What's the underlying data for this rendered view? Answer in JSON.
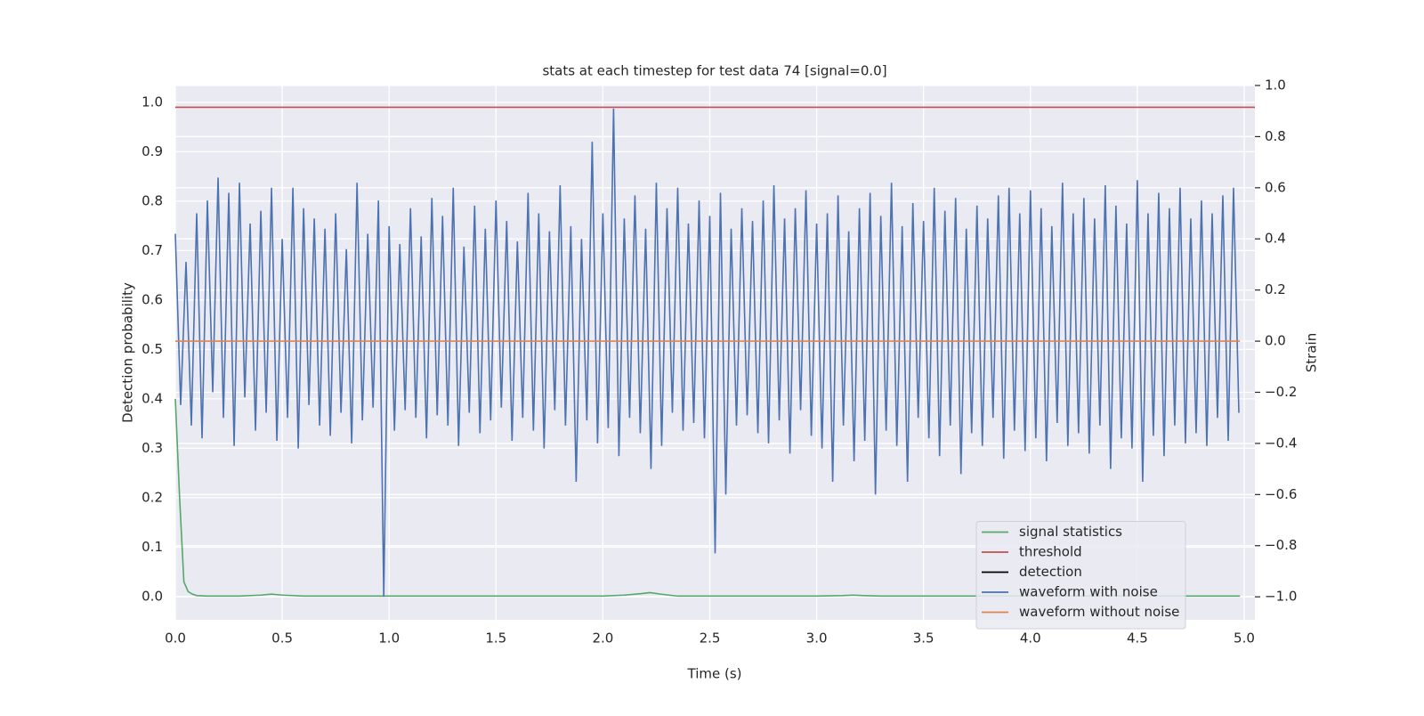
{
  "chart_data": {
    "type": "line",
    "title": "stats at each timestep for test data 74 [signal=0.0]",
    "xlabel": "Time (s)",
    "ylabel": "Detection probability",
    "y2label": "Strain",
    "xlim": [
      0,
      5.05
    ],
    "ylim": [
      -0.047,
      1.034
    ],
    "y2lim": [
      -1.09,
      1.0
    ],
    "xticks": [
      {
        "value": 0,
        "label": "0.0"
      },
      {
        "value": 0.5,
        "label": "0.5"
      },
      {
        "value": 1,
        "label": "1.0"
      },
      {
        "value": 1.5,
        "label": "1.5"
      },
      {
        "value": 2,
        "label": "2.0"
      },
      {
        "value": 2.5,
        "label": "2.5"
      },
      {
        "value": 3,
        "label": "3.0"
      },
      {
        "value": 3.5,
        "label": "3.5"
      },
      {
        "value": 4,
        "label": "4.0"
      },
      {
        "value": 4.5,
        "label": "4.5"
      },
      {
        "value": 5,
        "label": "5.0"
      }
    ],
    "yticks": [
      {
        "value": 0,
        "label": "0.0"
      },
      {
        "value": 0.1,
        "label": "0.1"
      },
      {
        "value": 0.2,
        "label": "0.2"
      },
      {
        "value": 0.3,
        "label": "0.3"
      },
      {
        "value": 0.4,
        "label": "0.4"
      },
      {
        "value": 0.5,
        "label": "0.5"
      },
      {
        "value": 0.6,
        "label": "0.6"
      },
      {
        "value": 0.7,
        "label": "0.7"
      },
      {
        "value": 0.8,
        "label": "0.8"
      },
      {
        "value": 0.9,
        "label": "0.9"
      },
      {
        "value": 1,
        "label": "1.0"
      }
    ],
    "y2ticks": [
      {
        "value": -1,
        "label": "−1.0"
      },
      {
        "value": -0.8,
        "label": "−0.8"
      },
      {
        "value": -0.6,
        "label": "−0.6"
      },
      {
        "value": -0.4,
        "label": "−0.4"
      },
      {
        "value": -0.2,
        "label": "−0.2"
      },
      {
        "value": 0,
        "label": "0.0"
      },
      {
        "value": 0.2,
        "label": "0.2"
      },
      {
        "value": 0.4,
        "label": "0.4"
      },
      {
        "value": 0.6,
        "label": "0.6"
      },
      {
        "value": 0.8,
        "label": "0.8"
      },
      {
        "value": 1,
        "label": "1.0"
      }
    ],
    "grid": true,
    "legend": "lower right",
    "series": [
      {
        "name": "signal statistics",
        "color": "#55a868",
        "axis": "y",
        "x": [
          0,
          0.02,
          0.04,
          0.06,
          0.08,
          0.1,
          0.15,
          0.3,
          0.4,
          0.45,
          0.5,
          0.6,
          1.0,
          2.0,
          2.1,
          2.18,
          2.22,
          2.27,
          2.35,
          2.5,
          3.0,
          3.12,
          3.17,
          3.22,
          3.3,
          4.0,
          4.98
        ],
        "values": [
          0.4,
          0.2,
          0.03,
          0.01,
          0.005,
          0.002,
          0.001,
          0.001,
          0.003,
          0.005,
          0.003,
          0.001,
          0.001,
          0.001,
          0.003,
          0.006,
          0.008,
          0.005,
          0.001,
          0.001,
          0.001,
          0.002,
          0.003,
          0.002,
          0.001,
          0.001,
          0.001
        ]
      },
      {
        "name": "threshold",
        "color": "#c44e52",
        "axis": "y",
        "x": [
          0,
          5.05
        ],
        "values": [
          0.99,
          0.99
        ]
      },
      {
        "name": "detection",
        "color": "#000000",
        "axis": "y",
        "x": [],
        "values": []
      },
      {
        "name": "waveform with noise",
        "color": "#4c72b0",
        "axis": "y2",
        "x": [
          0,
          0.025,
          0.05,
          0.075,
          0.1,
          0.125,
          0.15,
          0.175,
          0.2,
          0.225,
          0.25,
          0.275,
          0.3,
          0.325,
          0.35,
          0.375,
          0.4,
          0.425,
          0.45,
          0.475,
          0.5,
          0.525,
          0.55,
          0.575,
          0.6,
          0.625,
          0.65,
          0.675,
          0.7,
          0.725,
          0.75,
          0.775,
          0.8,
          0.825,
          0.85,
          0.875,
          0.9,
          0.925,
          0.95,
          0.975,
          1.0,
          1.025,
          1.05,
          1.075,
          1.1,
          1.125,
          1.15,
          1.175,
          1.2,
          1.225,
          1.25,
          1.275,
          1.3,
          1.325,
          1.35,
          1.375,
          1.4,
          1.425,
          1.45,
          1.475,
          1.5,
          1.525,
          1.55,
          1.575,
          1.6,
          1.625,
          1.65,
          1.675,
          1.7,
          1.725,
          1.75,
          1.775,
          1.8,
          1.825,
          1.85,
          1.875,
          1.9,
          1.925,
          1.95,
          1.975,
          2.0,
          2.025,
          2.05,
          2.075,
          2.1,
          2.125,
          2.15,
          2.175,
          2.2,
          2.225,
          2.25,
          2.275,
          2.3,
          2.325,
          2.35,
          2.375,
          2.4,
          2.425,
          2.45,
          2.475,
          2.5,
          2.525,
          2.55,
          2.575,
          2.6,
          2.625,
          2.65,
          2.675,
          2.7,
          2.725,
          2.75,
          2.775,
          2.8,
          2.825,
          2.85,
          2.875,
          2.9,
          2.925,
          2.95,
          2.975,
          3.0,
          3.025,
          3.05,
          3.075,
          3.1,
          3.125,
          3.15,
          3.175,
          3.2,
          3.225,
          3.25,
          3.275,
          3.3,
          3.325,
          3.35,
          3.375,
          3.4,
          3.425,
          3.45,
          3.475,
          3.5,
          3.525,
          3.55,
          3.575,
          3.6,
          3.625,
          3.65,
          3.675,
          3.7,
          3.725,
          3.75,
          3.775,
          3.8,
          3.825,
          3.85,
          3.875,
          3.9,
          3.925,
          3.95,
          3.975,
          4.0,
          4.025,
          4.05,
          4.075,
          4.1,
          4.125,
          4.15,
          4.175,
          4.2,
          4.225,
          4.25,
          4.275,
          4.3,
          4.325,
          4.35,
          4.375,
          4.4,
          4.425,
          4.45,
          4.475,
          4.5,
          4.525,
          4.55,
          4.575,
          4.6,
          4.625,
          4.65,
          4.675,
          4.7,
          4.725,
          4.75,
          4.775,
          4.8,
          4.825,
          4.85,
          4.875,
          4.9,
          4.925,
          4.95,
          4.975
        ],
        "values": [
          0.42,
          -0.25,
          0.31,
          -0.33,
          0.5,
          -0.38,
          0.55,
          -0.2,
          0.64,
          -0.3,
          0.58,
          -0.41,
          0.62,
          -0.22,
          0.46,
          -0.35,
          0.51,
          -0.28,
          0.6,
          -0.39,
          0.4,
          -0.3,
          0.6,
          -0.42,
          0.52,
          -0.25,
          0.48,
          -0.33,
          0.44,
          -0.37,
          0.5,
          -0.28,
          0.36,
          -0.4,
          0.62,
          -0.31,
          0.42,
          -0.26,
          0.55,
          -1.0,
          0.45,
          -0.35,
          0.38,
          -0.27,
          0.52,
          -0.3,
          0.41,
          -0.38,
          0.56,
          -0.29,
          0.49,
          -0.33,
          0.6,
          -0.41,
          0.37,
          -0.28,
          0.53,
          -0.36,
          0.44,
          -0.31,
          0.55,
          -0.26,
          0.47,
          -0.39,
          0.39,
          -0.3,
          0.58,
          -0.35,
          0.5,
          -0.42,
          0.43,
          -0.27,
          0.61,
          -0.33,
          0.45,
          -0.55,
          0.4,
          -0.31,
          0.78,
          -0.4,
          0.5,
          -0.34,
          0.91,
          -0.45,
          0.48,
          -0.3,
          0.57,
          -0.36,
          0.44,
          -0.5,
          0.62,
          -0.41,
          0.52,
          -0.28,
          0.6,
          -0.35,
          0.46,
          -0.32,
          0.55,
          -0.38,
          0.49,
          -0.83,
          0.58,
          -0.6,
          0.44,
          -0.33,
          0.52,
          -0.29,
          0.47,
          -0.36,
          0.55,
          -0.4,
          0.61,
          -0.31,
          0.48,
          -0.44,
          0.52,
          -0.27,
          0.59,
          -0.37,
          0.46,
          -0.42,
          0.5,
          -0.55,
          0.57,
          -0.33,
          0.43,
          -0.47,
          0.52,
          -0.39,
          0.58,
          -0.6,
          0.49,
          -0.35,
          0.62,
          -0.41,
          0.45,
          -0.55,
          0.54,
          -0.3,
          0.47,
          -0.38,
          0.6,
          -0.45,
          0.51,
          -0.33,
          0.56,
          -0.52,
          0.44,
          -0.36,
          0.53,
          -0.41,
          0.48,
          -0.3,
          0.57,
          -0.46,
          0.6,
          -0.35,
          0.5,
          -0.43,
          0.59,
          -0.38,
          0.52,
          -0.47,
          0.45,
          -0.32,
          0.62,
          -0.41,
          0.5,
          -0.36,
          0.56,
          -0.44,
          0.48,
          -0.33,
          0.61,
          -0.5,
          0.53,
          -0.38,
          0.46,
          -0.42,
          0.63,
          -0.55,
          0.5,
          -0.37,
          0.58,
          -0.45,
          0.52,
          -0.33,
          0.6,
          -0.4,
          0.48,
          -0.36,
          0.55,
          -0.41,
          0.5,
          -0.3,
          0.57,
          -0.39,
          0.6,
          -0.28
        ]
      },
      {
        "name": "waveform without noise",
        "color": "#dd8452",
        "axis": "y2",
        "x": [
          0,
          4.98
        ],
        "values": [
          0,
          0
        ]
      }
    ]
  }
}
